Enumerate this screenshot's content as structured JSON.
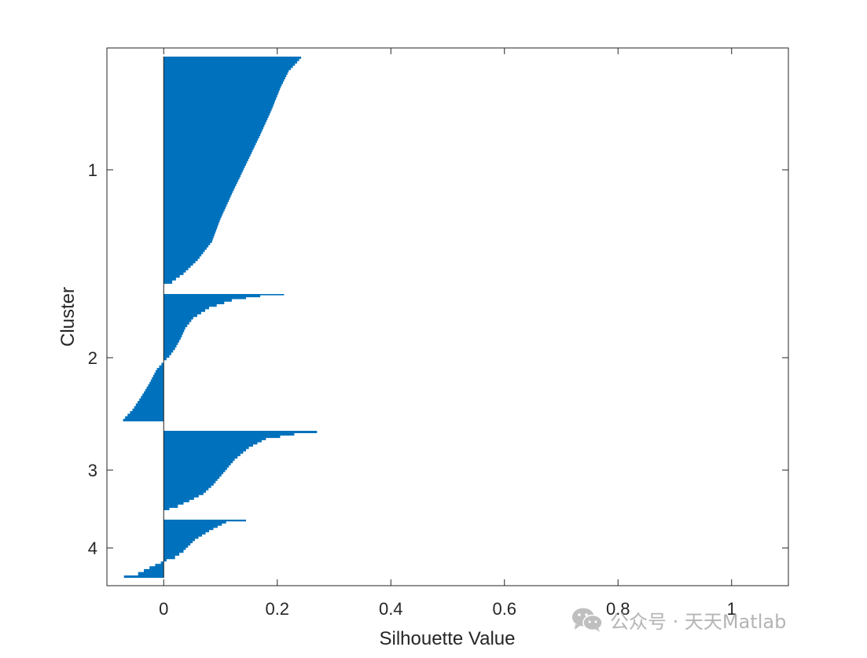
{
  "chart_data": {
    "type": "bar",
    "orientation": "horizontal",
    "title": "",
    "xlabel": "Silhouette Value",
    "ylabel": "Cluster",
    "xlim": [
      -0.1,
      1.1
    ],
    "x_ticks": [
      "0",
      "0.2",
      "0.4",
      "0.6",
      "0.8",
      "1"
    ],
    "x_tick_values": [
      0,
      0.2,
      0.4,
      0.6,
      0.8,
      1
    ],
    "grid": false,
    "legend": "none",
    "bar_color": "#0072BD",
    "clusters": [
      {
        "name": "1",
        "profile": [
          [
            0.242,
            0.0
          ],
          [
            0.235,
            0.02
          ],
          [
            0.22,
            0.06
          ],
          [
            0.206,
            0.13
          ],
          [
            0.19,
            0.23
          ],
          [
            0.17,
            0.34
          ],
          [
            0.145,
            0.47
          ],
          [
            0.12,
            0.6
          ],
          [
            0.1,
            0.71
          ],
          [
            0.085,
            0.81
          ],
          [
            0.06,
            0.89
          ],
          [
            0.035,
            0.95
          ],
          [
            0.015,
            0.985
          ],
          [
            0.004,
            1.0
          ]
        ]
      },
      {
        "name": "2",
        "profile": [
          [
            0.212,
            0.0
          ],
          [
            0.17,
            0.01
          ],
          [
            0.12,
            0.04
          ],
          [
            0.08,
            0.1
          ],
          [
            0.052,
            0.18
          ],
          [
            0.038,
            0.26
          ],
          [
            0.03,
            0.34
          ],
          [
            0.02,
            0.42
          ],
          [
            0.01,
            0.48
          ],
          [
            0.0,
            0.52
          ],
          [
            -0.012,
            0.58
          ],
          [
            -0.025,
            0.69
          ],
          [
            -0.04,
            0.8
          ],
          [
            -0.055,
            0.9
          ],
          [
            -0.068,
            0.96
          ],
          [
            -0.075,
            1.0
          ]
        ]
      },
      {
        "name": "3",
        "profile": [
          [
            0.27,
            0.0
          ],
          [
            0.23,
            0.03
          ],
          [
            0.18,
            0.09
          ],
          [
            0.15,
            0.2
          ],
          [
            0.125,
            0.35
          ],
          [
            0.105,
            0.52
          ],
          [
            0.088,
            0.66
          ],
          [
            0.07,
            0.78
          ],
          [
            0.045,
            0.87
          ],
          [
            0.025,
            0.93
          ],
          [
            0.01,
            0.97
          ],
          [
            0.001,
            1.0
          ]
        ]
      },
      {
        "name": "4",
        "profile": [
          [
            0.145,
            0.0
          ],
          [
            0.11,
            0.03
          ],
          [
            0.08,
            0.18
          ],
          [
            0.055,
            0.33
          ],
          [
            0.035,
            0.52
          ],
          [
            0.02,
            0.62
          ],
          [
            0.005,
            0.68
          ],
          [
            -0.005,
            0.72
          ],
          [
            -0.025,
            0.8
          ],
          [
            -0.045,
            0.9
          ],
          [
            -0.07,
            0.96
          ],
          [
            -0.1,
            1.0
          ]
        ]
      }
    ]
  },
  "watermark": {
    "icon": "wechat-icon",
    "text": "公众号 · 天天Matlab",
    "color": "#b4b4b4"
  }
}
